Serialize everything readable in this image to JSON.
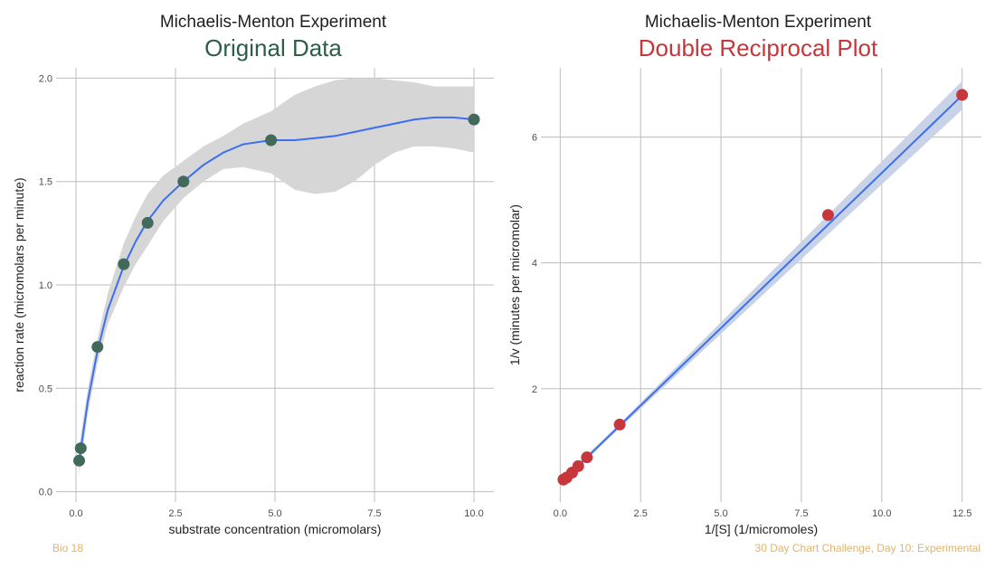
{
  "chart_data": [
    {
      "type": "scatter",
      "title": "Michaelis-Menton Experiment",
      "subtitle": "Original Data",
      "xlabel": "substrate concentration (micromolars)",
      "ylabel": "reaction rate (micromolars per minute)",
      "xlim": [
        -0.5,
        10.5
      ],
      "ylim": [
        -0.05,
        2.05
      ],
      "xticks": [
        "0.0",
        "2.5",
        "5.0",
        "7.5",
        "10.0"
      ],
      "yticks": [
        "0.0",
        "0.5",
        "1.0",
        "1.5",
        "2.0"
      ],
      "grid": true,
      "smooth": "loess with confidence band",
      "points": [
        {
          "x": 0.08,
          "y": 0.15
        },
        {
          "x": 0.12,
          "y": 0.21
        },
        {
          "x": 0.54,
          "y": 0.7
        },
        {
          "x": 1.2,
          "y": 1.1
        },
        {
          "x": 1.8,
          "y": 1.3
        },
        {
          "x": 2.7,
          "y": 1.5
        },
        {
          "x": 4.9,
          "y": 1.7
        },
        {
          "x": 10.0,
          "y": 1.8
        }
      ],
      "fit": {
        "x": [
          0.08,
          0.3,
          0.54,
          0.8,
          1.2,
          1.5,
          1.8,
          2.2,
          2.7,
          3.2,
          3.7,
          4.2,
          4.9,
          5.5,
          6.0,
          6.5,
          7.0,
          7.5,
          8.0,
          8.5,
          9.0,
          9.5,
          10.0
        ],
        "y": [
          0.15,
          0.44,
          0.68,
          0.88,
          1.09,
          1.21,
          1.31,
          1.41,
          1.5,
          1.58,
          1.64,
          1.68,
          1.7,
          1.7,
          1.71,
          1.72,
          1.74,
          1.76,
          1.78,
          1.8,
          1.81,
          1.81,
          1.8
        ],
        "lower": [
          0.08,
          0.38,
          0.62,
          0.81,
          0.99,
          1.1,
          1.19,
          1.31,
          1.42,
          1.5,
          1.56,
          1.57,
          1.54,
          1.46,
          1.44,
          1.45,
          1.5,
          1.58,
          1.64,
          1.67,
          1.67,
          1.66,
          1.64
        ],
        "upper": [
          0.22,
          0.5,
          0.74,
          0.96,
          1.2,
          1.33,
          1.44,
          1.53,
          1.6,
          1.67,
          1.72,
          1.78,
          1.84,
          1.92,
          1.96,
          1.99,
          2.0,
          2.0,
          1.99,
          1.98,
          1.96,
          1.96,
          1.96
        ]
      },
      "point_color": "#426a5a",
      "subtitle_color": "#2d5e47",
      "line_color": "#3b6ef0",
      "band_color": "#d6d6d6"
    },
    {
      "type": "scatter",
      "title": "Michaelis-Menton Experiment",
      "subtitle": "Double Reciprocal Plot",
      "xlabel": "1/[S] (1/micromoles)",
      "ylabel": "1/v (minutes per micromolar)",
      "xlim": [
        -0.6,
        13.1
      ],
      "ylim": [
        0.2,
        7.1
      ],
      "xticks": [
        "0.0",
        "2.5",
        "5.0",
        "7.5",
        "10.0",
        "12.5"
      ],
      "yticks": [
        "2",
        "4",
        "6"
      ],
      "grid": true,
      "smooth": "linear fit with confidence band",
      "points": [
        {
          "x": 0.1,
          "y": 0.556
        },
        {
          "x": 0.2,
          "y": 0.588
        },
        {
          "x": 0.37,
          "y": 0.667
        },
        {
          "x": 0.56,
          "y": 0.769
        },
        {
          "x": 0.83,
          "y": 0.909
        },
        {
          "x": 1.85,
          "y": 1.43
        },
        {
          "x": 8.33,
          "y": 4.76
        },
        {
          "x": 12.5,
          "y": 6.67
        }
      ],
      "fit": {
        "intercept": 0.5,
        "slope": 0.493,
        "x_range": [
          0.1,
          12.5
        ]
      },
      "point_color": "#c7363a",
      "subtitle_color": "#c7363a",
      "line_color": "#3b6ef0",
      "band_color": "#c9d3e8"
    }
  ],
  "captions": {
    "left": "Bio 18",
    "right": "30 Day Chart Challenge, Day 10: Experimental"
  }
}
